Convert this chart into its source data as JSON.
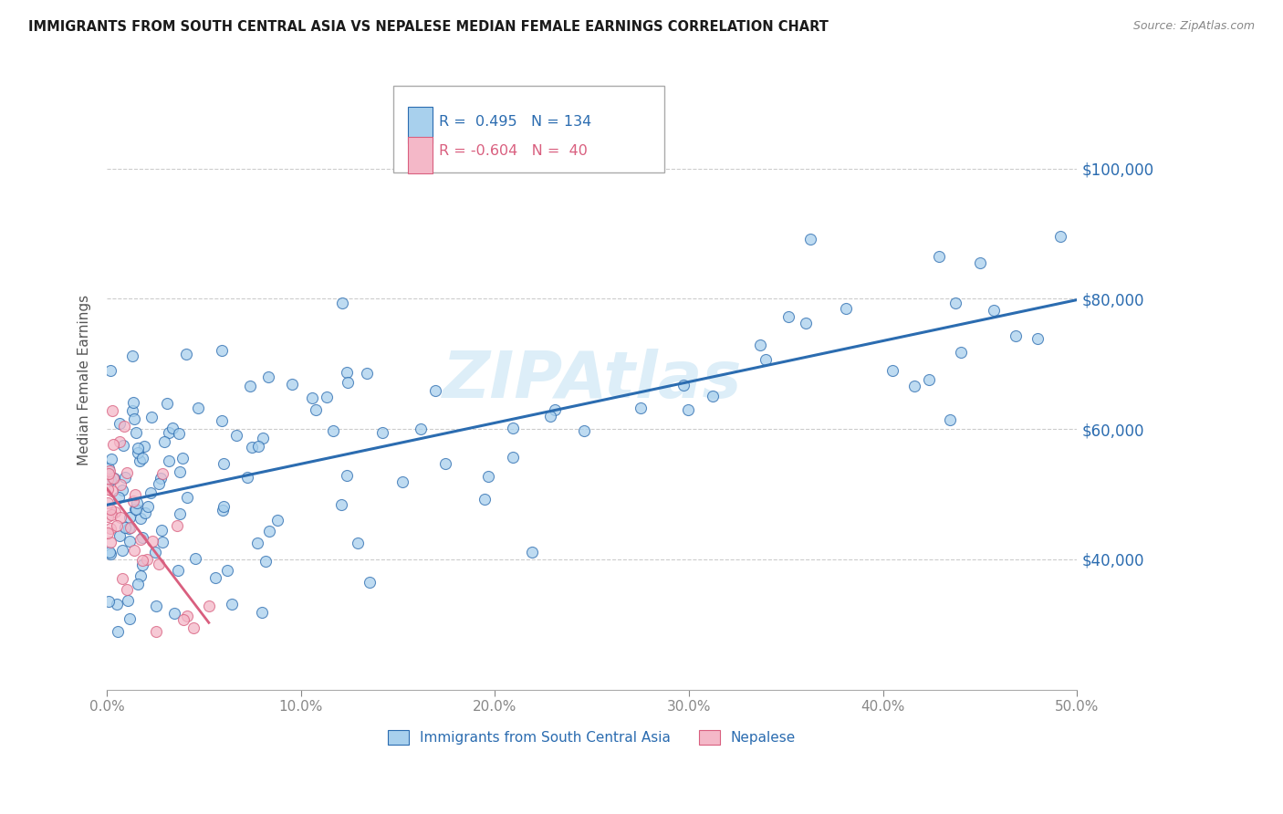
{
  "title": "IMMIGRANTS FROM SOUTH CENTRAL ASIA VS NEPALESE MEDIAN FEMALE EARNINGS CORRELATION CHART",
  "source": "Source: ZipAtlas.com",
  "ylabel": "Median Female Earnings",
  "xlim": [
    0.0,
    0.5
  ],
  "ylim": [
    20000,
    115000
  ],
  "xtick_labels": [
    "0.0%",
    "10.0%",
    "20.0%",
    "30.0%",
    "40.0%",
    "50.0%"
  ],
  "xtick_values": [
    0.0,
    0.1,
    0.2,
    0.3,
    0.4,
    0.5
  ],
  "ytick_labels": [
    "$40,000",
    "$60,000",
    "$80,000",
    "$100,000"
  ],
  "ytick_values": [
    40000,
    60000,
    80000,
    100000
  ],
  "blue_R": "0.495",
  "blue_N": "134",
  "pink_R": "-0.604",
  "pink_N": "40",
  "blue_color": "#a8d0ed",
  "pink_color": "#f4b8c8",
  "blue_line_color": "#2b6cb0",
  "pink_line_color": "#d95f7f",
  "grid_color": "#cccccc",
  "axis_label_color": "#2b6cb0",
  "watermark_color": "#ddeef8",
  "legend_label_blue": "Immigrants from South Central Asia",
  "legend_label_pink": "Nepalese"
}
